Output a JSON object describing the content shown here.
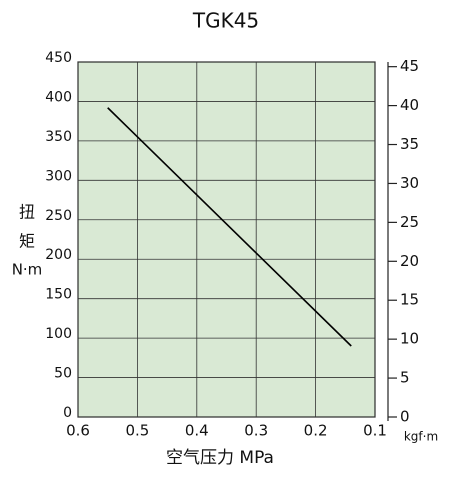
{
  "chart_data": {
    "type": "line",
    "title": "TGK45",
    "x": [
      0.55,
      0.14
    ],
    "values": [
      392,
      90
    ],
    "color": "#000000",
    "xlim": [
      0.6,
      0.1
    ],
    "xticks": [
      0.6,
      0.5,
      0.4,
      0.3,
      0.2,
      0.1
    ],
    "ylim": [
      0,
      450
    ],
    "yticks": [
      0,
      50,
      100,
      150,
      200,
      250,
      300,
      350,
      400,
      450
    ],
    "y2lim": [
      0,
      45.6
    ],
    "y2ticks": [
      0,
      5,
      10,
      15,
      20,
      25,
      30,
      35,
      40,
      45
    ],
    "xlabel": "空气压力 MPa",
    "ylabel": [
      "扭",
      "矩",
      "N·m"
    ],
    "y2label": "kgf·m",
    "grid": true,
    "background": "#d9e9d4"
  }
}
